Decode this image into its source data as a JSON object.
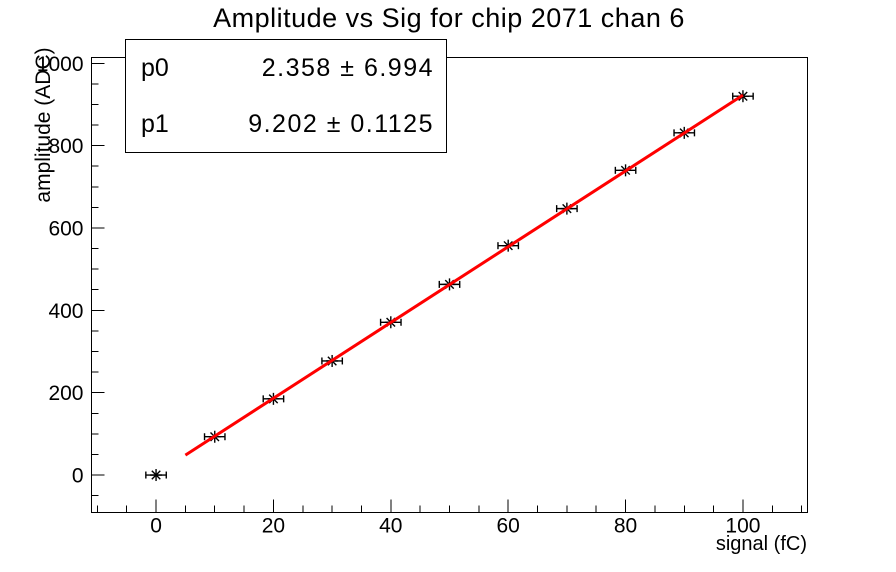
{
  "title": "Amplitude vs Sig for chip 2071 chan 6",
  "stats_box": {
    "rows": [
      {
        "label": "p0",
        "value": "2.358 ± 6.994"
      },
      {
        "label": "p1",
        "value": "9.202 ± 0.1125"
      }
    ]
  },
  "chart_data": {
    "type": "scatter",
    "title": "Amplitude vs Sig for chip 2071 chan 6",
    "xlabel": "signal (fC)",
    "ylabel": "amplitude (ADC)",
    "x": [
      0,
      10,
      20,
      30,
      40,
      50,
      60,
      70,
      80,
      90,
      100
    ],
    "y": [
      0,
      93,
      185,
      277,
      371,
      463,
      557,
      647,
      740,
      831,
      920
    ],
    "xerr": 1.4,
    "marker": "asterisk",
    "marker_color": "#000000",
    "xlim": [
      -11,
      111
    ],
    "ylim": [
      -91,
      1014
    ],
    "x_ticks": [
      0,
      20,
      40,
      60,
      80,
      100
    ],
    "y_ticks": [
      0,
      200,
      400,
      600,
      800,
      1000
    ],
    "x_minor_step": 5,
    "y_minor_step": 50,
    "grid": false,
    "legend": null,
    "fit": {
      "type": "pol1",
      "p0": 2.358,
      "p1": 9.202,
      "draw_range": [
        5,
        100
      ],
      "color": "#ff0000",
      "width": 3
    }
  },
  "colors": {
    "background": "#ffffff",
    "frame": "#000000",
    "marker": "#000000",
    "fit_line": "#ff0000"
  }
}
